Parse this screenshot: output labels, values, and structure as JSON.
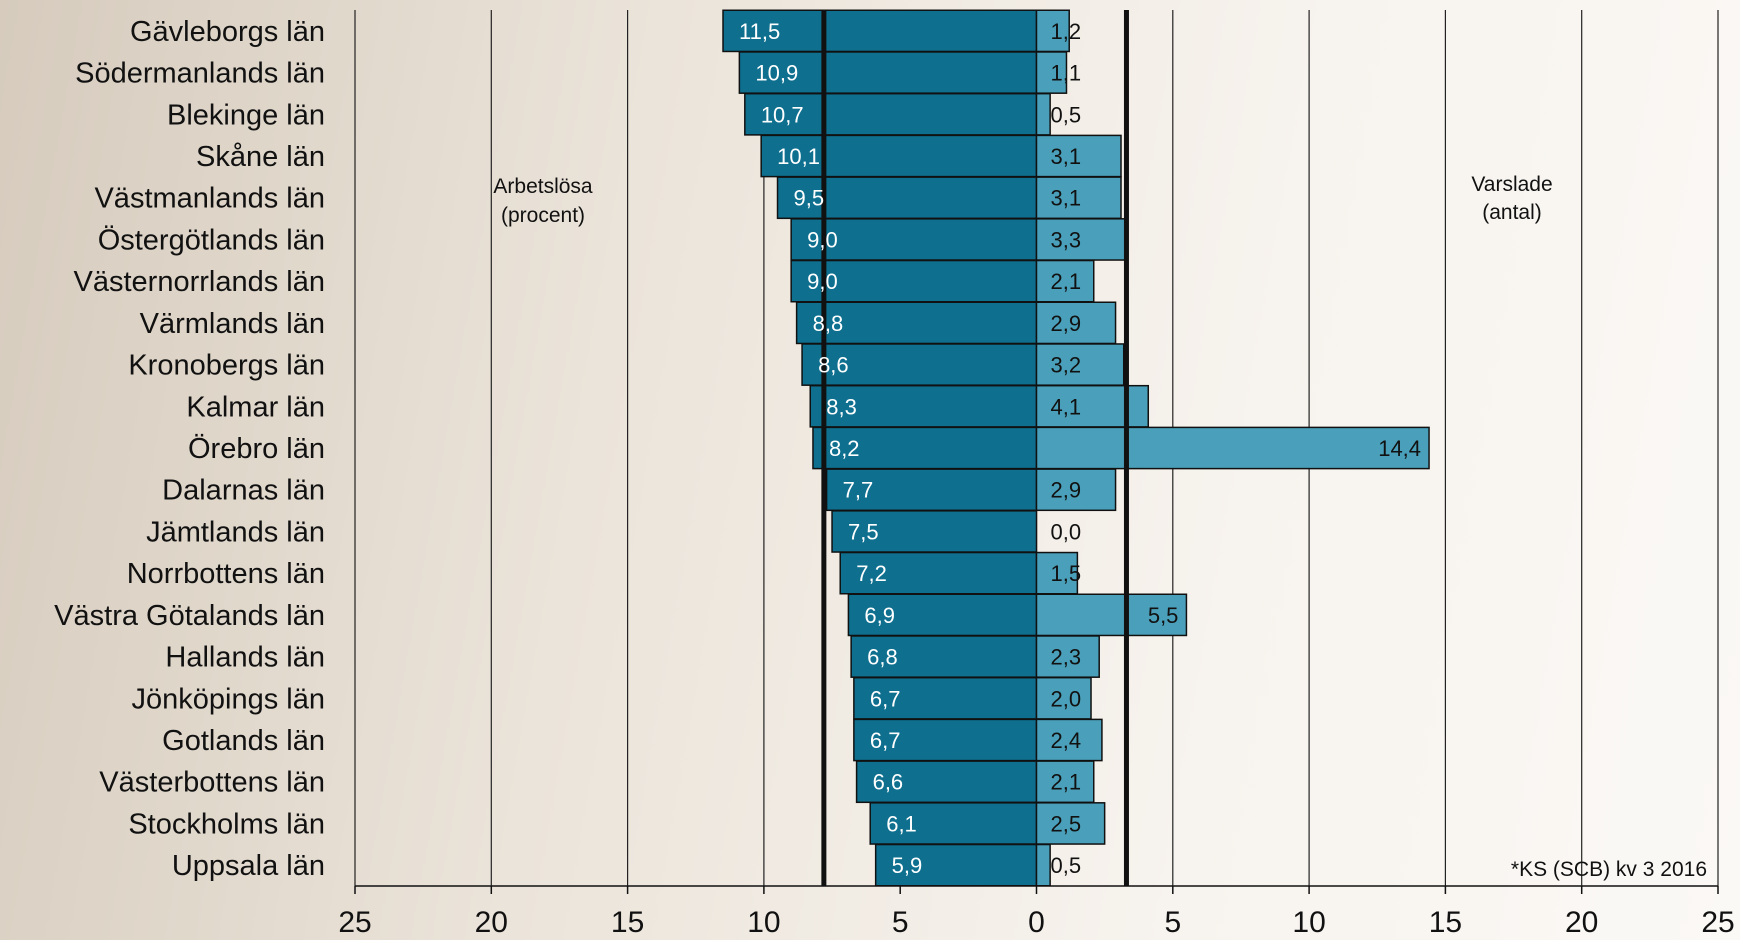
{
  "chart_data": {
    "type": "bar",
    "categories": [
      "Gävleborgs län",
      "Södermanlands län",
      "Blekinge län",
      "Skåne län",
      "Västmanlands län",
      "Östergötlands län",
      "Västernorrlands län",
      "Värmlands län",
      "Kronobergs län",
      "Kalmar län",
      "Örebro län",
      "Dalarnas län",
      "Jämtlands län",
      "Norrbottens län",
      "Västra Götalands län",
      "Hallands län",
      "Jönköpings län",
      "Gotlands län",
      "Västerbottens län",
      "Stockholms län",
      "Uppsala län"
    ],
    "series": [
      {
        "name": "Arbetslösa (procent)",
        "values": [
          11.5,
          10.9,
          10.7,
          10.1,
          9.5,
          9.0,
          9.0,
          8.8,
          8.6,
          8.3,
          8.2,
          7.7,
          7.5,
          7.2,
          6.9,
          6.8,
          6.7,
          6.7,
          6.6,
          6.1,
          5.9
        ],
        "labels": [
          "11,5",
          "10,9",
          "10,7",
          "10,1",
          "9,5",
          "9,0",
          "9,0",
          "8,8",
          "8,6",
          "8,3",
          "8,2",
          "7,7",
          "7,5",
          "7,2",
          "6,9",
          "6,8",
          "6,7",
          "6,7",
          "6,6",
          "6,1",
          "5,9"
        ],
        "color": "#0e6f8f",
        "average_line": 7.8
      },
      {
        "name": "Varslade (antal)",
        "values": [
          1.2,
          1.1,
          0.5,
          3.1,
          3.1,
          3.3,
          2.1,
          2.9,
          3.2,
          4.1,
          14.4,
          2.9,
          0.0,
          1.5,
          5.5,
          2.3,
          2.0,
          2.4,
          2.1,
          2.5,
          0.5
        ],
        "labels": [
          "1,2",
          "1,1",
          "0,5",
          "3,1",
          "3,1",
          "3,3",
          "2,1",
          "2,9",
          "3,2",
          "4,1",
          "14,4",
          "2,9",
          "0,0",
          "1,5",
          "5,5",
          "2,3",
          "2,0",
          "2,4",
          "2,1",
          "2,5",
          "0,5"
        ],
        "color": "#4aa0ba",
        "average_line": 3.3
      }
    ],
    "x_ticks": [
      "25",
      "20",
      "15",
      "10",
      "5",
      "0",
      "5",
      "10",
      "15",
      "20",
      "25"
    ],
    "xlim": [
      -25,
      25
    ],
    "annotations": {
      "left_label_line1": "Arbetslösa",
      "left_label_line2": "(procent)",
      "right_label_line1": "Varslade",
      "right_label_line2": "(antal)",
      "source": "*KS (SCB) kv 3 2016"
    },
    "grid": true
  }
}
